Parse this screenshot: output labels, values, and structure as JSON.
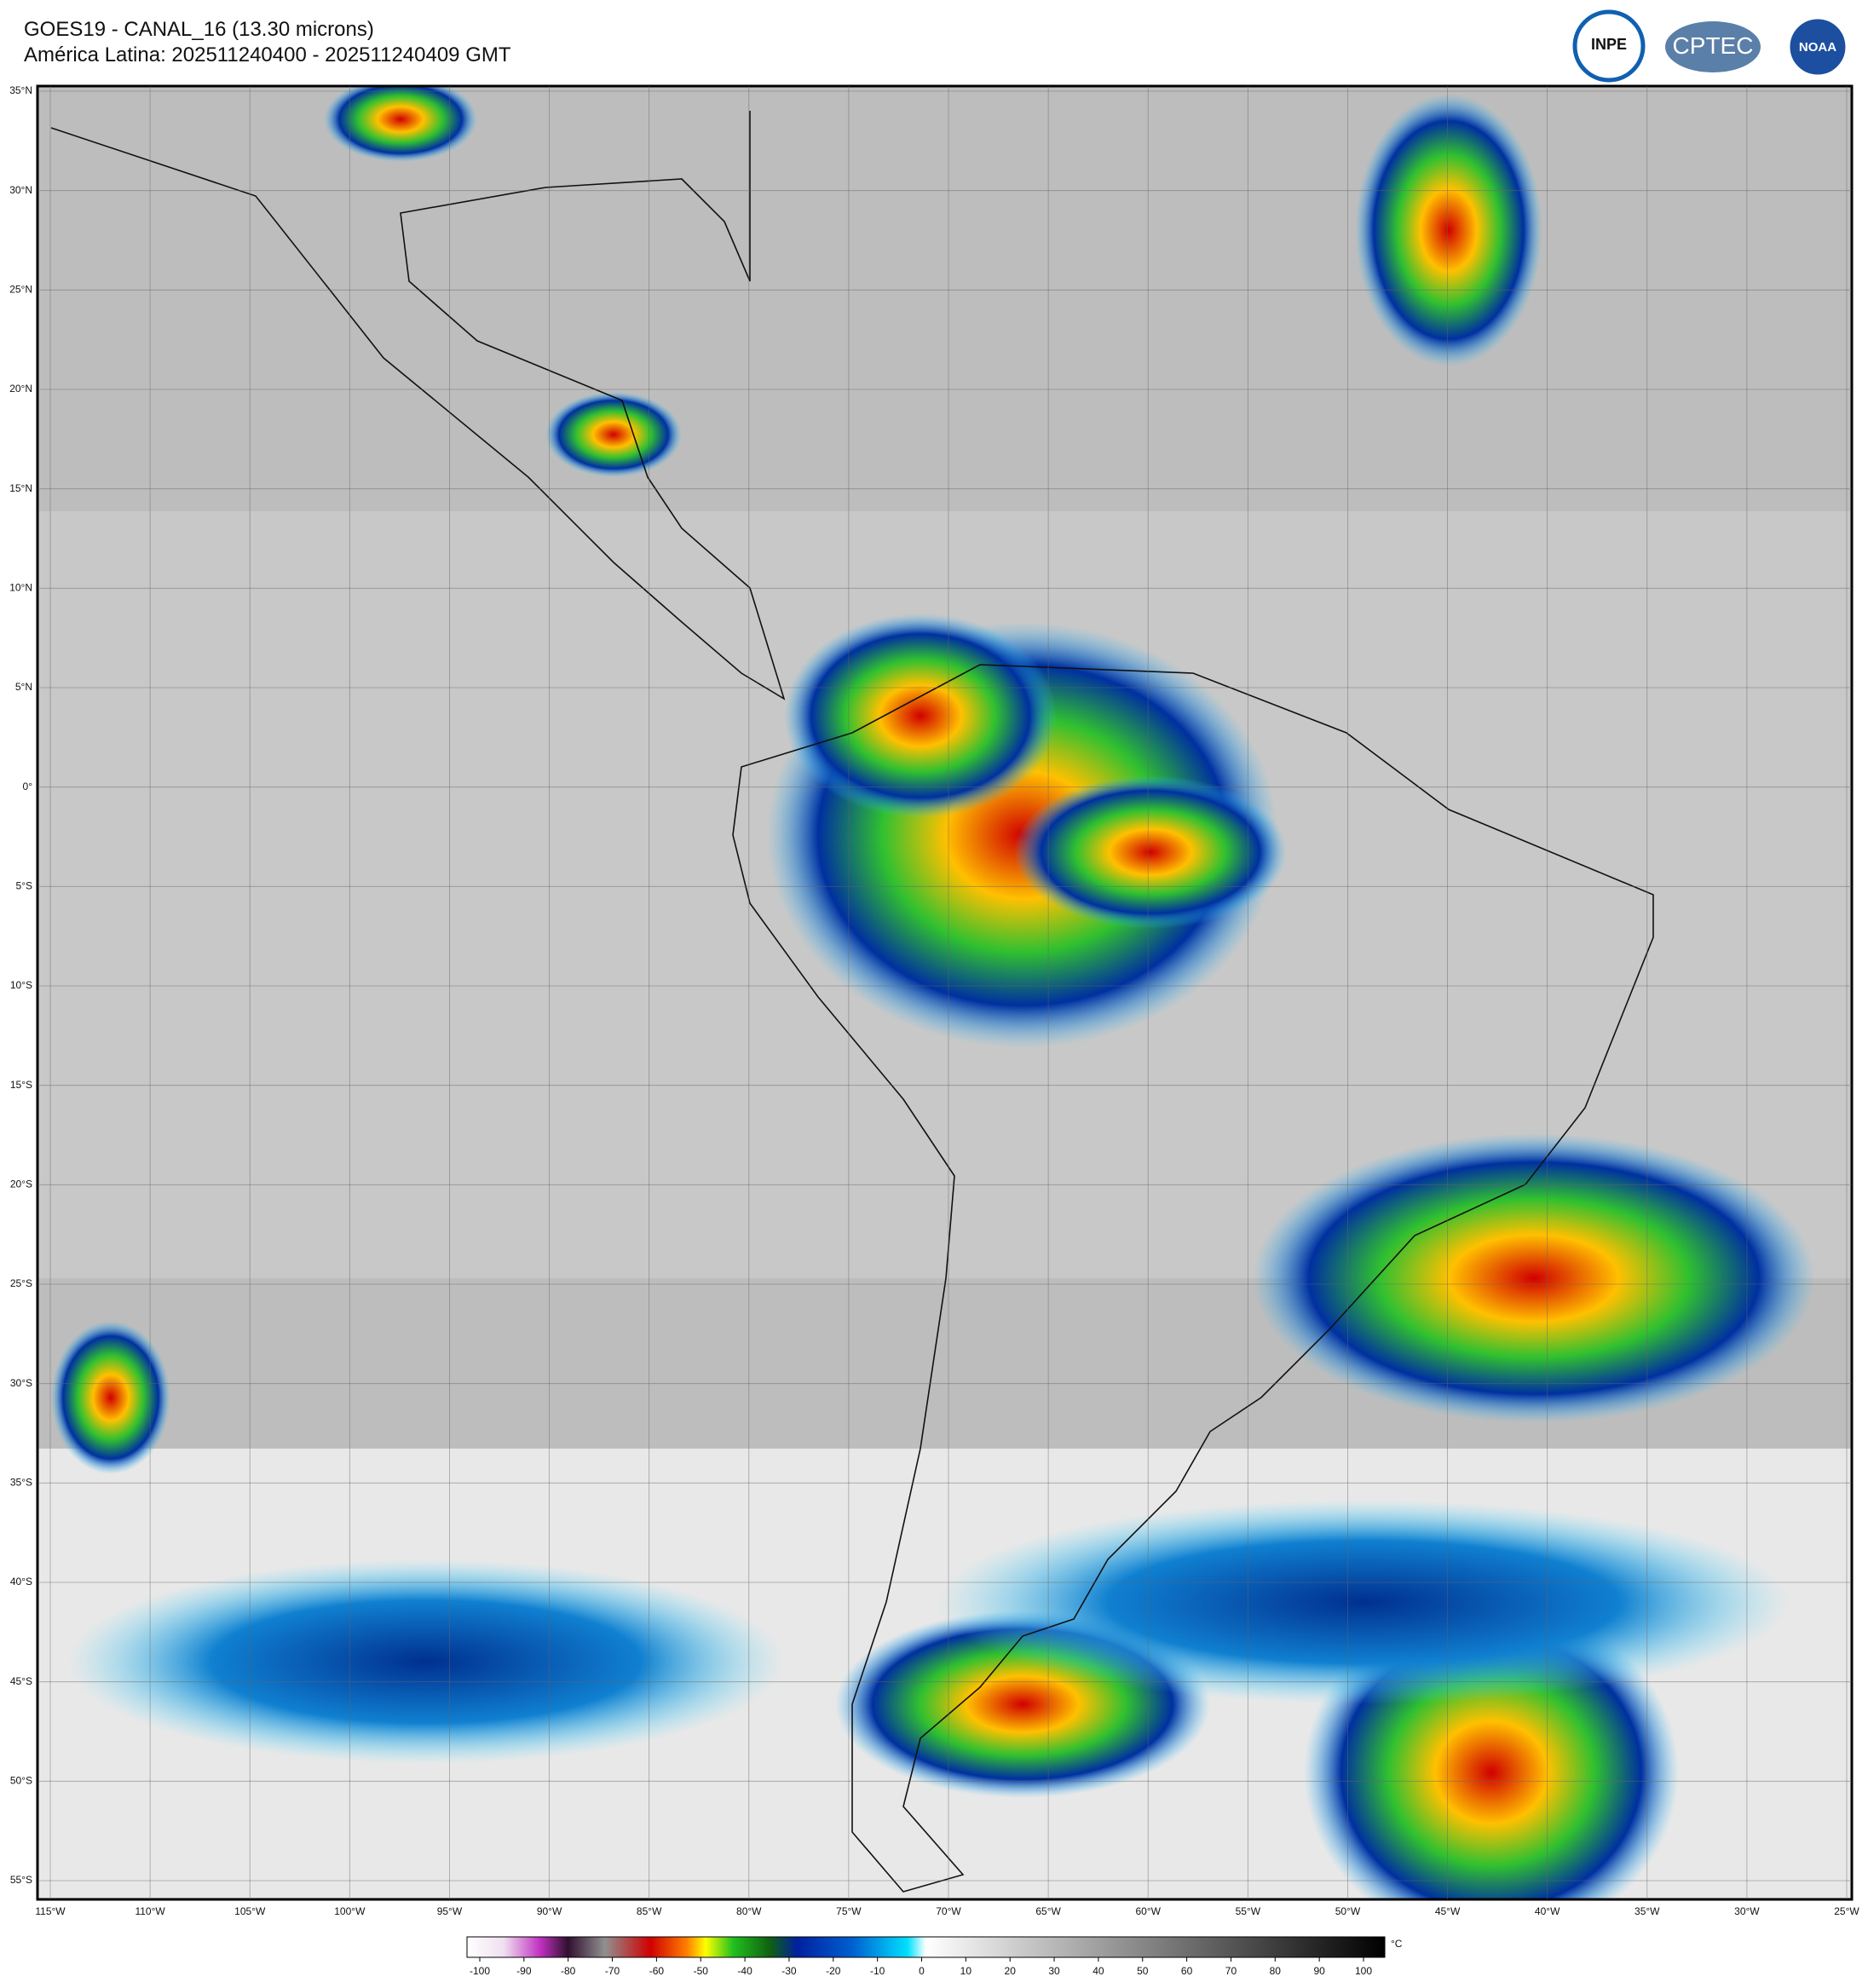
{
  "header": {
    "title": "GOES19 - CANAL_16 (13.30 microns)",
    "subtitle": "América Latina: 202511240400 - 202511240409 GMT"
  },
  "logos": [
    "INPE",
    "CPTEC",
    "NOAA"
  ],
  "map": {
    "lat_labels": [
      "35°N",
      "30°N",
      "25°N",
      "20°N",
      "15°N",
      "10°N",
      "5°N",
      "0°",
      "5°S",
      "10°S",
      "15°S",
      "20°S",
      "25°S",
      "30°S",
      "35°S",
      "40°S",
      "45°S",
      "50°S",
      "55°S"
    ],
    "lon_labels": [
      "115°W",
      "110°W",
      "105°W",
      "100°W",
      "95°W",
      "90°W",
      "85°W",
      "80°W",
      "75°W",
      "70°W",
      "65°W",
      "60°W",
      "55°W",
      "50°W",
      "45°W",
      "40°W",
      "35°W",
      "30°W",
      "25°W"
    ]
  },
  "colorbar": {
    "unit": "°C",
    "ticks": [
      -100,
      -90,
      -80,
      -70,
      -60,
      -50,
      -40,
      -30,
      -20,
      -10,
      0,
      10,
      20,
      30,
      40,
      50,
      60,
      70,
      80,
      90,
      100
    ]
  }
}
